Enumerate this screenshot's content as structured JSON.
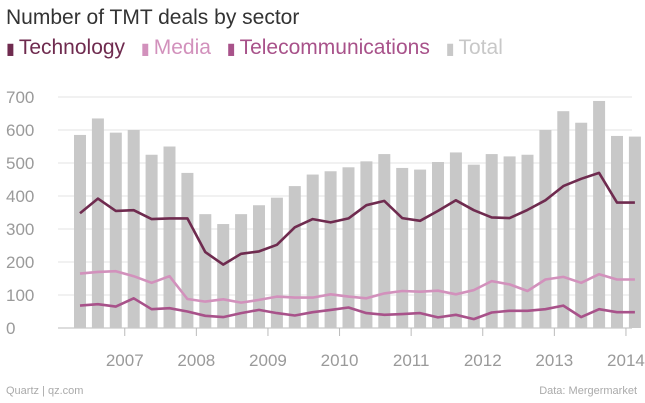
{
  "header": {
    "title": "Number of TMT deals by sector"
  },
  "colors": {
    "Technology": "#6f2b4f",
    "Media": "#d291bc",
    "Telecommunications": "#a8528a",
    "Total": "#c8c8c8"
  },
  "footer": {
    "source_left": "Quartz | qz.com",
    "source_right": "Data: Mergermarket"
  },
  "chart_data": {
    "type": "bar",
    "title": "Number of TMT deals by sector",
    "ylim": [
      0,
      700
    ],
    "grid": true,
    "legend_position": "top-left",
    "y_ticks": [
      "0",
      "100",
      "200",
      "300",
      "400",
      "500",
      "600",
      "700"
    ],
    "x_tick_labels": [
      "2007",
      "2008",
      "2009",
      "2010",
      "2011",
      "2012",
      "2013",
      "2014"
    ],
    "periods": [
      "2006 Q4",
      "2007 Q1",
      "2007 Q2",
      "2007 Q3",
      "2007 Q4",
      "2008 Q1",
      "2008 Q2",
      "2008 Q3",
      "2008 Q4",
      "2009 Q1",
      "2009 Q2",
      "2009 Q3",
      "2009 Q4",
      "2010 Q1",
      "2010 Q2",
      "2010 Q3",
      "2010 Q4",
      "2011 Q1",
      "2011 Q2",
      "2011 Q3",
      "2011 Q4",
      "2012 Q1",
      "2012 Q2",
      "2012 Q3",
      "2012 Q4",
      "2013 Q1",
      "2013 Q2",
      "2013 Q3",
      "2013 Q4",
      "2014 Q1",
      "2014 Q2",
      "2014 Q3"
    ],
    "series": [
      {
        "name": "Total",
        "kind": "bar",
        "values": [
          585,
          635,
          592,
          600,
          525,
          550,
          470,
          345,
          315,
          345,
          372,
          395,
          430,
          465,
          475,
          487,
          505,
          527,
          485,
          480,
          503,
          532,
          495,
          527,
          520,
          525,
          600,
          657,
          622,
          688,
          582,
          580
        ]
      },
      {
        "name": "Technology",
        "kind": "line",
        "values": [
          348,
          392,
          355,
          357,
          330,
          332,
          332,
          230,
          192,
          225,
          232,
          252,
          305,
          330,
          320,
          332,
          372,
          385,
          333,
          325,
          355,
          387,
          357,
          335,
          333,
          358,
          387,
          430,
          452,
          470,
          380,
          380
        ]
      },
      {
        "name": "Media",
        "kind": "line",
        "values": [
          165,
          170,
          172,
          157,
          137,
          157,
          88,
          80,
          87,
          77,
          85,
          95,
          92,
          92,
          102,
          95,
          90,
          105,
          112,
          110,
          113,
          102,
          115,
          142,
          132,
          112,
          147,
          155,
          137,
          163,
          147,
          147
        ]
      },
      {
        "name": "Telecommunications",
        "kind": "line",
        "values": [
          68,
          72,
          65,
          90,
          57,
          60,
          50,
          37,
          33,
          45,
          55,
          45,
          38,
          48,
          55,
          62,
          45,
          40,
          42,
          45,
          32,
          40,
          27,
          47,
          52,
          52,
          57,
          68,
          33,
          57,
          48,
          48
        ]
      }
    ]
  }
}
